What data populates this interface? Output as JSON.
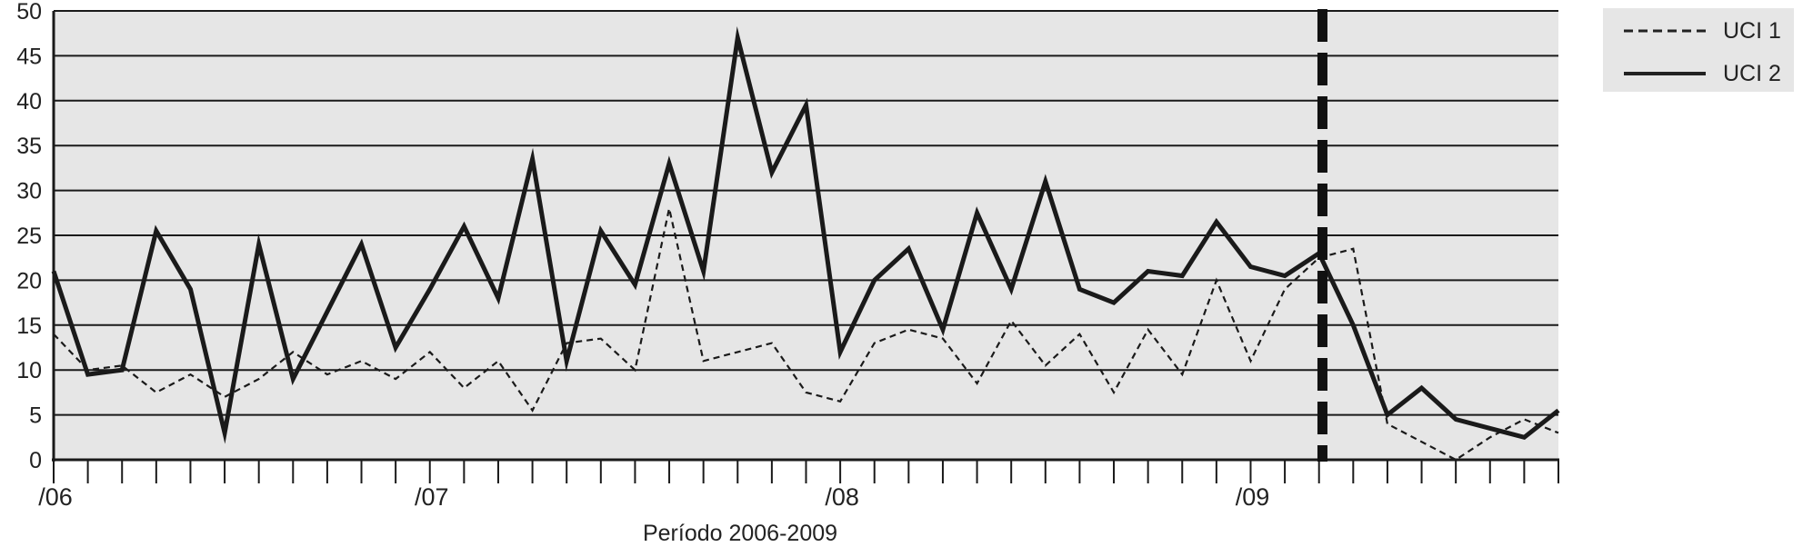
{
  "chart_data": {
    "type": "line",
    "xlabel": "Período 2006-2009",
    "ylabel": "",
    "ylim": [
      0,
      50
    ],
    "y_ticks": [
      0,
      5,
      10,
      15,
      20,
      25,
      30,
      35,
      40,
      45,
      50
    ],
    "x_range": [
      0,
      44
    ],
    "x_tick_labels": [
      {
        "x": 0,
        "label": "/06"
      },
      {
        "x": 11,
        "label": "/07"
      },
      {
        "x": 23,
        "label": "/08"
      },
      {
        "x": 35,
        "label": "/09"
      }
    ],
    "grid": true,
    "legend_placement": "top-right",
    "intervention_marker_x": 37.1,
    "series": [
      {
        "name": "UCI 1",
        "style": "dashed",
        "x": [
          0,
          1,
          2,
          3,
          4,
          5,
          6,
          7,
          8,
          9,
          10,
          11,
          12,
          13,
          14,
          15,
          16,
          17,
          18,
          19,
          20,
          21,
          22,
          23,
          24,
          25,
          26,
          27,
          28,
          29,
          30,
          31,
          32,
          33,
          34,
          35,
          36,
          37,
          38,
          39,
          40,
          41,
          42,
          43,
          44
        ],
        "values": [
          14,
          10,
          10.5,
          7.5,
          9.5,
          7,
          9,
          12,
          9.5,
          11,
          9,
          12,
          8,
          11,
          5.5,
          13,
          13.5,
          10,
          28,
          11,
          12,
          13,
          7.5,
          6.5,
          13,
          14.5,
          13.5,
          8.5,
          15.5,
          10.5,
          14,
          7.5,
          14.5,
          9.5,
          20,
          11,
          19,
          22.5,
          23.5,
          4,
          2,
          0,
          2.5,
          4.5,
          3
        ]
      },
      {
        "name": "UCI 2",
        "style": "solid",
        "x": [
          0,
          1,
          2,
          3,
          4,
          5,
          6,
          7,
          8,
          9,
          10,
          11,
          12,
          13,
          14,
          15,
          16,
          17,
          18,
          19,
          20,
          21,
          22,
          23,
          24,
          25,
          26,
          27,
          28,
          29,
          30,
          31,
          32,
          33,
          34,
          35,
          36,
          37,
          38,
          39,
          40,
          41,
          42,
          43,
          44
        ],
        "values": [
          21,
          9.5,
          10,
          25.5,
          19,
          3,
          24,
          9,
          16.5,
          24,
          12.5,
          19,
          26,
          18,
          33.5,
          11,
          25.5,
          19.5,
          33,
          21,
          47,
          32,
          39.5,
          12,
          20,
          23.5,
          14.5,
          27.5,
          19,
          31,
          19,
          17.5,
          21,
          20.5,
          26.5,
          21.5,
          20.5,
          23,
          15,
          5,
          8,
          4.5,
          3.5,
          2.5,
          5.5
        ]
      }
    ]
  }
}
